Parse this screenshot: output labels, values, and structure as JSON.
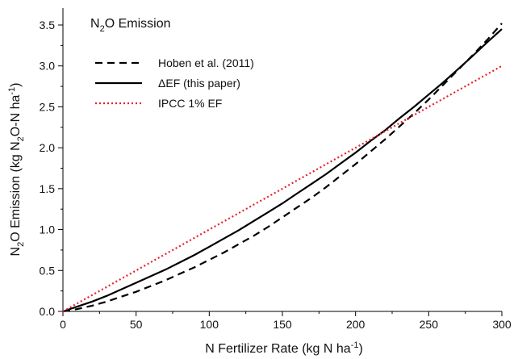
{
  "chart_data": {
    "type": "line",
    "title": {
      "pre": "N",
      "sub": "2",
      "post": "O Emission"
    },
    "xlabel": {
      "text": "N Fertilizer Rate (kg N ha",
      "sup": "-1",
      "close": ")"
    },
    "ylabel": {
      "p1": "N",
      "s1": "2",
      "p2": "O Emission  (kg N",
      "s2": "2",
      "p3": "O-N ha",
      "sup": "-1",
      "p4": ")"
    },
    "xlim": [
      0,
      300
    ],
    "ylim": [
      0,
      3.5
    ],
    "xticks": [
      0,
      50,
      100,
      150,
      200,
      250,
      300
    ],
    "yticks": [
      0.0,
      0.5,
      1.0,
      1.5,
      2.0,
      2.5,
      3.0,
      3.5
    ],
    "ytick_labels": [
      "0.0",
      "0.5",
      "1.0",
      "1.5",
      "2.0",
      "2.5",
      "3.0",
      "3.5"
    ],
    "x": [
      0,
      10,
      20,
      30,
      40,
      50,
      60,
      70,
      80,
      90,
      100,
      110,
      120,
      130,
      140,
      150,
      160,
      170,
      180,
      190,
      200,
      210,
      220,
      230,
      240,
      250,
      260,
      270,
      280,
      290,
      300
    ],
    "legend_position": "top-left",
    "series": [
      {
        "name": "Hoben et al. (2011)",
        "color": "#000000",
        "style": "dashed",
        "values": [
          0.0,
          0.03,
          0.07,
          0.12,
          0.18,
          0.24,
          0.31,
          0.38,
          0.46,
          0.54,
          0.63,
          0.72,
          0.82,
          0.92,
          1.03,
          1.15,
          1.27,
          1.39,
          1.52,
          1.66,
          1.8,
          1.95,
          2.1,
          2.26,
          2.42,
          2.59,
          2.77,
          2.95,
          3.13,
          3.32,
          3.52
        ]
      },
      {
        "name": "ΔEF (this paper)",
        "color": "#000000",
        "style": "solid",
        "values": [
          0.0,
          0.06,
          0.12,
          0.19,
          0.27,
          0.35,
          0.43,
          0.51,
          0.6,
          0.69,
          0.79,
          0.89,
          0.99,
          1.1,
          1.21,
          1.32,
          1.44,
          1.56,
          1.68,
          1.81,
          1.94,
          2.08,
          2.21,
          2.36,
          2.5,
          2.65,
          2.8,
          2.96,
          3.12,
          3.29,
          3.45
        ]
      },
      {
        "name": "IPCC 1% EF",
        "color": "#e8202a",
        "style": "dotted",
        "values": [
          0.0,
          0.1,
          0.2,
          0.3,
          0.4,
          0.5,
          0.6,
          0.7,
          0.8,
          0.9,
          1.0,
          1.1,
          1.2,
          1.3,
          1.4,
          1.5,
          1.6,
          1.7,
          1.8,
          1.9,
          2.0,
          2.1,
          2.2,
          2.3,
          2.4,
          2.5,
          2.6,
          2.7,
          2.8,
          2.9,
          3.0
        ]
      }
    ]
  }
}
